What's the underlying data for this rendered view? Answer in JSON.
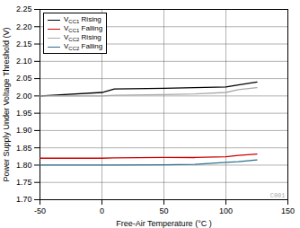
{
  "chart_data": {
    "type": "line",
    "xlabel": "Free-Air Temperature (°C )",
    "ylabel": "Power Supply Under Voltage Threshold (V)",
    "xlim": [
      -50,
      150
    ],
    "ylim": [
      1.7,
      2.25
    ],
    "xticks": [
      -50,
      0,
      50,
      100,
      150
    ],
    "yticks": [
      {
        "value": 1.7,
        "label": "1.70"
      },
      1.75,
      {
        "value": 1.8,
        "label": "1.80"
      },
      1.85,
      {
        "value": 1.9,
        "label": "1.90"
      },
      1.95,
      {
        "value": 2.0,
        "label": "2.00"
      },
      2.05,
      {
        "value": 2.1,
        "label": "2.10"
      },
      2.15,
      {
        "value": 2.2,
        "label": "2.20"
      },
      2.25
    ],
    "grid": true,
    "legend": "upper left",
    "annotations": [
      "C001"
    ],
    "x": [
      -50,
      -40,
      0,
      10,
      50,
      75,
      100,
      110,
      125
    ],
    "series": [
      {
        "name": "VCC1 Rising",
        "color": "#000000",
        "values": [
          2.0,
          2.002,
          2.01,
          2.02,
          2.022,
          2.024,
          2.026,
          2.032,
          2.04
        ]
      },
      {
        "name": "VCC1 Falling",
        "color": "#cc0000",
        "values": [
          1.82,
          1.82,
          1.82,
          1.821,
          1.822,
          1.822,
          1.824,
          1.828,
          1.832
        ]
      },
      {
        "name": "VCC2 Rising",
        "color": "#aaaaaa",
        "values": [
          2.0,
          2.0,
          2.0,
          2.002,
          2.004,
          2.006,
          2.01,
          2.018,
          2.024
        ]
      },
      {
        "name": "VCC2 Falling",
        "color": "#2e6e8e",
        "values": [
          1.8,
          1.8,
          1.8,
          1.8,
          1.801,
          1.802,
          1.808,
          1.81,
          1.815
        ]
      }
    ]
  }
}
